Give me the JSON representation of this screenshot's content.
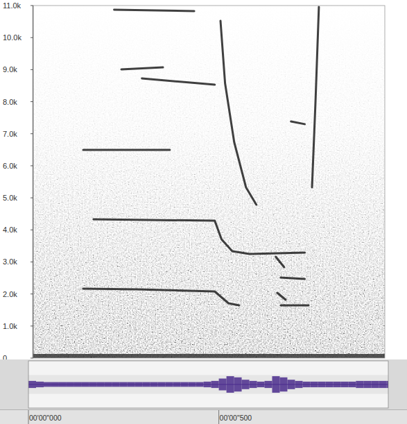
{
  "chart_data": [
    {
      "type": "line",
      "xlim": [
        0.013,
        0.935
      ],
      "ylim": [
        0,
        11000
      ],
      "yticks": [
        0,
        {
          "value": 1000,
          "label": "1.0k"
        },
        {
          "value": 2000,
          "label": "2.0k"
        },
        {
          "value": 3000,
          "label": "3.0k"
        },
        {
          "value": 4000,
          "label": "4.0k"
        },
        {
          "value": 5000,
          "label": "5.0k"
        },
        {
          "value": 6000,
          "label": "6.0k"
        },
        {
          "value": 7000,
          "label": "7.0k"
        },
        {
          "value": 8000,
          "label": "8.0k"
        },
        {
          "value": 9000,
          "label": "9.0k"
        },
        {
          "value": 10000,
          "label": "10.0k"
        },
        {
          "value": 11000,
          "label": "11.0k"
        }
      ],
      "tick_labels": "y",
      "color": "#1e1e1e",
      "series": [
        {
          "x": [
            0.144,
            0.289,
            0.489,
            0.525,
            0.553
          ],
          "values": [
            2165,
            2143,
            2079,
            1710,
            1646
          ]
        },
        {
          "x": [
            0.171,
            0.489,
            0.507,
            0.535,
            0.58,
            0.653,
            0.725
          ],
          "values": [
            4331,
            4288,
            3703,
            3335,
            3248,
            3270,
            3291
          ]
        },
        {
          "x": [
            0.144,
            0.371
          ],
          "values": [
            6496,
            6496
          ]
        },
        {
          "x": [
            0.244,
            0.353
          ],
          "values": [
            9008,
            9073
          ]
        },
        {
          "x": [
            0.298,
            0.489
          ],
          "values": [
            8727,
            8532
          ]
        },
        {
          "x": [
            0.225,
            0.435
          ],
          "values": [
            10870,
            10827
          ]
        },
        {
          "x": [
            0.504,
            0.516,
            0.54,
            0.571,
            0.598
          ],
          "values": [
            10524,
            8575,
            6734,
            5327,
            4786
          ]
        },
        {
          "x": [
            0.762,
            0.753,
            0.744
          ],
          "values": [
            10957,
            7925,
            5327
          ]
        },
        {
          "x": [
            0.653,
            0.675
          ],
          "values": [
            2035,
            1819
          ]
        },
        {
          "x": [
            0.662,
            0.735
          ],
          "values": [
            1646,
            1646
          ]
        },
        {
          "x": [
            0.662,
            0.725
          ],
          "values": [
            2512,
            2469
          ]
        },
        {
          "x": [
            0.649,
            0.671
          ],
          "values": [
            3162,
            2837
          ]
        },
        {
          "x": [
            0.689,
            0.725
          ],
          "values": [
            7384,
            7300
          ]
        }
      ]
    },
    {
      "type": "bar",
      "xlim": [
        0,
        0.945
      ],
      "ylim": [
        -1,
        1
      ],
      "xticks": [
        {
          "value": 0,
          "label": "00'00\"000"
        },
        {
          "value": 0.5,
          "label": "00'00\"500"
        }
      ],
      "tick_labels": "x",
      "color": "#4a2c8c",
      "x": [
        0,
        0.02,
        0.04,
        0.06,
        0.08,
        0.1,
        0.12,
        0.14,
        0.16,
        0.18,
        0.2,
        0.22,
        0.24,
        0.26,
        0.28,
        0.3,
        0.32,
        0.34,
        0.36,
        0.38,
        0.4,
        0.42,
        0.44,
        0.46,
        0.48,
        0.5,
        0.52,
        0.54,
        0.56,
        0.58,
        0.6,
        0.62,
        0.64,
        0.66,
        0.68,
        0.7,
        0.72,
        0.74,
        0.76,
        0.78,
        0.8,
        0.82,
        0.84,
        0.86,
        0.88,
        0.9,
        0.92,
        0.94
      ],
      "values": [
        0.15,
        0.12,
        0.1,
        0.1,
        0.1,
        0.1,
        0.1,
        0.1,
        0.1,
        0.1,
        0.1,
        0.1,
        0.1,
        0.1,
        0.1,
        0.1,
        0.1,
        0.1,
        0.1,
        0.1,
        0.1,
        0.1,
        0.1,
        0.12,
        0.15,
        0.25,
        0.35,
        0.3,
        0.2,
        0.15,
        0.12,
        0.15,
        0.35,
        0.3,
        0.2,
        0.15,
        0.12,
        0.12,
        0.12,
        0.12,
        0.12,
        0.12,
        0.12,
        0.15,
        0.15,
        0.15,
        0.15,
        0.15
      ]
    }
  ]
}
